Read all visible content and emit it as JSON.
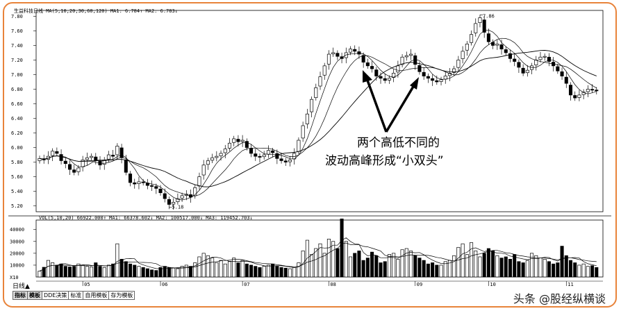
{
  "header": {
    "stock_name": "生益科技日线",
    "ma_line": "MA(5,10,20,30,60,120)",
    "ma1": "MA1: 6.784↑",
    "ma2": "MA2: 6.783↓"
  },
  "volume_header": {
    "vol_line": "VOL(5,10,20)",
    "vol_value": "66922.000↑",
    "ma1": "MA1: 66378.602↓",
    "ma2": "MA2: 100517.000↓",
    "ma3": "MA3: 119452.703↓"
  },
  "annotation": {
    "line1": "两个高低不同的",
    "line2": "波动高峰形成“小双头”"
  },
  "watermark": "头条 @股经纵横谈",
  "bottom_tabs": {
    "period": "日线▲",
    "tabs": [
      "指标",
      "模板",
      "DDE决策",
      "标准",
      "自用模板",
      "存为模板"
    ]
  },
  "colors": {
    "up": "#000000",
    "down": "#000000",
    "frame": "#e8833a",
    "ma": "#000000"
  },
  "chart_data": [
    {
      "type": "candlestick",
      "title": "生益科技日线",
      "y_ticks": [
        7.8,
        7.6,
        7.4,
        7.2,
        7.0,
        6.8,
        6.6,
        6.4,
        6.2,
        6.0,
        5.8,
        5.6,
        5.4,
        5.2
      ],
      "ylim": [
        5.12,
        7.88
      ],
      "x_month_labels": [
        "05",
        "06",
        "07",
        "08",
        "09",
        "10",
        "11"
      ],
      "annotations": {
        "high": "7.86",
        "low": "5.18"
      },
      "series": [
        {
          "name": "price",
          "y": [
            5.85,
            5.83,
            5.88,
            5.95,
            5.92,
            5.82,
            5.78,
            5.7,
            5.66,
            5.72,
            5.83,
            5.86,
            5.88,
            5.82,
            5.76,
            5.83,
            5.9,
            5.88,
            6.02,
            5.86,
            5.66,
            5.52,
            5.5,
            5.53,
            5.52,
            5.48,
            5.47,
            5.44,
            5.38,
            5.3,
            5.22,
            5.25,
            5.3,
            5.34,
            5.36,
            5.32,
            5.45,
            5.6,
            5.76,
            5.82,
            5.86,
            5.88,
            5.92,
            5.98,
            6.06,
            6.12,
            6.08,
            6.1,
            6.0,
            5.92,
            5.88,
            5.87,
            5.9,
            5.96,
            5.93,
            5.85,
            5.82,
            5.8,
            5.83,
            5.92,
            6.1,
            6.3,
            6.46,
            6.66,
            6.82,
            6.97,
            7.12,
            7.28,
            7.3,
            7.25,
            7.22,
            7.3,
            7.35,
            7.32,
            7.28,
            7.17,
            7.12,
            7.08,
            6.98,
            6.95,
            6.92,
            6.95,
            7.02,
            7.12,
            7.24,
            7.26,
            7.28,
            7.14,
            7.04,
            6.98,
            6.95,
            6.92,
            6.9,
            6.93,
            6.98,
            7.02,
            7.08,
            7.2,
            7.32,
            7.42,
            7.55,
            7.7,
            7.78,
            7.58,
            7.45,
            7.4,
            7.42,
            7.35,
            7.3,
            7.22,
            7.18,
            7.1,
            7.02,
            7.06,
            7.12,
            7.2,
            7.24,
            7.25,
            7.18,
            7.12,
            7.05,
            6.98,
            6.88,
            6.72,
            6.68,
            6.72,
            6.76,
            6.8,
            6.79,
            6.78
          ]
        }
      ]
    },
    {
      "type": "bar",
      "title": "VOL(5,10,20)",
      "y_ticks": [
        40000,
        30000,
        20000,
        10000
      ],
      "ylim": [
        0,
        48000
      ],
      "multiplier": "X10",
      "series": [
        {
          "name": "volume",
          "values": [
            5000,
            8200,
            14000,
            12000,
            10000,
            11000,
            9000,
            8500,
            9000,
            11000,
            10000,
            9000,
            8500,
            12000,
            9000,
            8000,
            10000,
            11000,
            28000,
            15000,
            13000,
            11000,
            10000,
            9000,
            8000,
            7000,
            6000,
            5500,
            8000,
            9000,
            8000,
            7500,
            7000,
            9000,
            10000,
            9000,
            12000,
            17000,
            20000,
            18000,
            16000,
            12000,
            14000,
            11000,
            13000,
            16000,
            12000,
            14000,
            11000,
            10000,
            9000,
            8000,
            9000,
            10000,
            11000,
            9000,
            8000,
            7500,
            7000,
            8000,
            12000,
            22000,
            31000,
            19000,
            24000,
            28000,
            20000,
            32000,
            30000,
            24000,
            49000,
            30000,
            17000,
            20000,
            22000,
            14000,
            16000,
            21000,
            18000,
            12000,
            13000,
            19000,
            20000,
            15000,
            23000,
            24000,
            22000,
            18000,
            16000,
            14000,
            11000,
            12000,
            10000,
            10000,
            13000,
            14000,
            18000,
            25000,
            28000,
            19000,
            29000,
            22000,
            17000,
            20000,
            24000,
            22000,
            18000,
            16000,
            17000,
            15000,
            19000,
            13000,
            12000,
            14000,
            20000,
            18000,
            16000,
            15000,
            13000,
            11000,
            12000,
            26000,
            18000,
            14000,
            12000,
            10000,
            11000,
            9000,
            9500,
            8000
          ]
        }
      ]
    }
  ]
}
